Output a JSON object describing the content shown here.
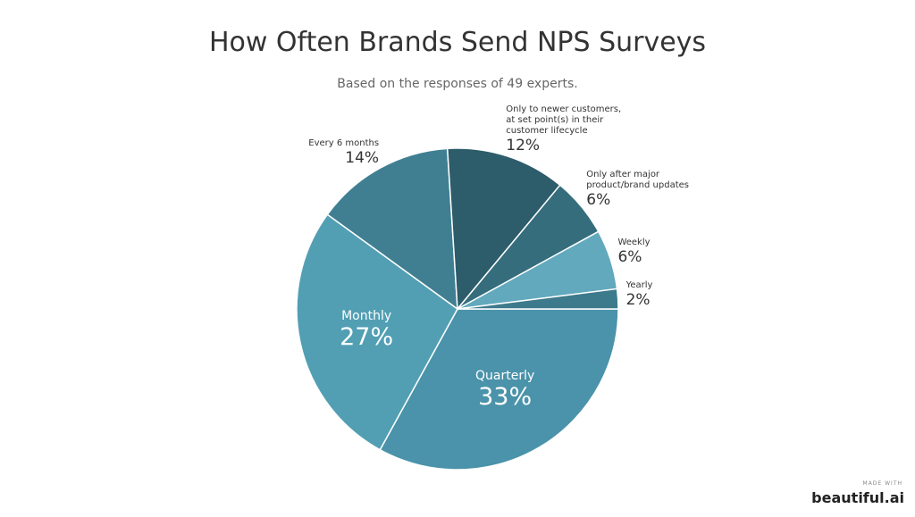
{
  "chart_data": {
    "type": "pie",
    "title": "How Often Brands Send NPS Surveys",
    "subtitle": "Based on the responses of 49 experts.",
    "categories": [
      "Quarterly",
      "Monthly",
      "Every 6 months",
      "Only to newer customers, at set point(s) in their customer lifecycle",
      "Only after major product/brand updates",
      "Weekly",
      "Yearly"
    ],
    "values": [
      33,
      27,
      14,
      12,
      6,
      6,
      2
    ],
    "value_labels": [
      "33%",
      "27%",
      "14%",
      "12%",
      "6%",
      "6%",
      "2%"
    ],
    "colors": [
      "#4a93aa",
      "#529fb4",
      "#407f92",
      "#2d5c6b",
      "#356d7d",
      "#62a9bd",
      "#3d7a8c"
    ]
  },
  "footer": {
    "made_with": "MADE WITH",
    "brand": "beautiful.ai"
  }
}
